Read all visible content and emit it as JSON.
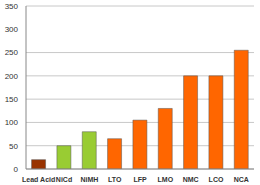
{
  "chart_data": {
    "type": "bar",
    "categories": [
      "Lead Acid",
      "NiCd",
      "NiMH",
      "LTO",
      "LFP",
      "LMO",
      "NMC",
      "LCO",
      "NCA"
    ],
    "values": [
      20,
      50,
      80,
      65,
      105,
      130,
      200,
      200,
      255
    ],
    "colors": [
      "#993300",
      "#99cc33",
      "#99cc33",
      "#ff6600",
      "#ff6600",
      "#ff6600",
      "#ff6600",
      "#ff6600",
      "#ff6600"
    ],
    "ylim": [
      0,
      350
    ],
    "yticks": [
      0,
      50,
      100,
      150,
      200,
      250,
      300,
      350
    ],
    "grid": true
  }
}
